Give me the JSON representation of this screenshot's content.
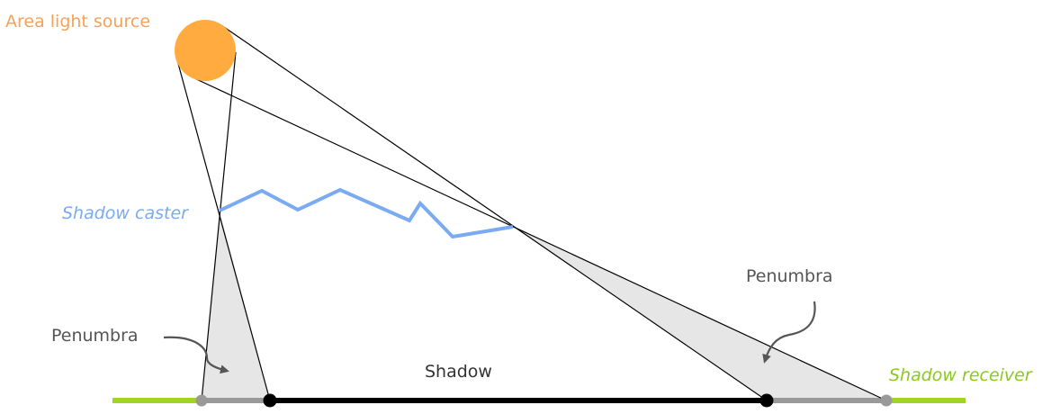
{
  "labels": {
    "light_source": "Area light source",
    "caster": "Shadow caster",
    "receiver": "Shadow receiver",
    "penumbra_left": "Penumbra",
    "penumbra_right": "Penumbra",
    "shadow": "Shadow"
  },
  "colors": {
    "light": "#ffab40",
    "light_label": "#f4a259",
    "caster": "#7aabf2",
    "receiver": "#a2d422",
    "receiver_label": "#8cc820",
    "penumbra_fill": "#e6e6e6",
    "penumbra_segment": "#999999",
    "umbra_segment": "#000000",
    "text": "#555555",
    "lines": "#000000"
  }
}
